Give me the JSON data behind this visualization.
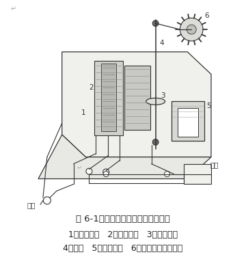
{
  "title": "图 6-1、感应系电度表的结构示意图",
  "caption_line1": "1、电流元件   2、电压元件   3、铝质圆盘",
  "caption_line2": "4、转轴   5、永久磁铁   6、蜗轮蜗杆传动机构",
  "bg_color": "#ffffff",
  "line_color": "#333333",
  "text_color": "#222222",
  "title_fontsize": 9.5,
  "caption_fontsize": 9,
  "fig_width": 3.6,
  "fig_height": 3.95,
  "dpi": 100
}
